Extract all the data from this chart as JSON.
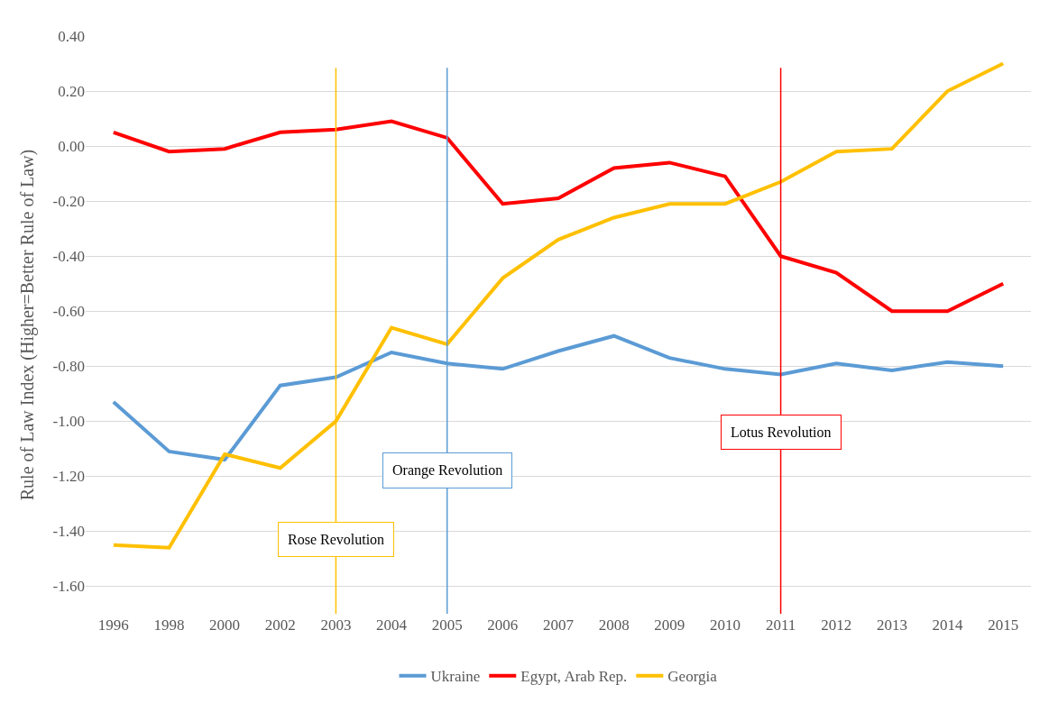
{
  "chart_data": {
    "type": "line",
    "ylabel": "Rule of Law Index (Higher=Better Rule of Law)",
    "categories": [
      "1996",
      "1998",
      "2000",
      "2002",
      "2003",
      "2004",
      "2005",
      "2006",
      "2007",
      "2008",
      "2009",
      "2010",
      "2011",
      "2012",
      "2013",
      "2014",
      "2015"
    ],
    "series": [
      {
        "name": "Ukraine",
        "color": "#5b9bd5",
        "values": [
          -0.93,
          -1.11,
          -1.14,
          -0.87,
          -0.84,
          -0.75,
          -0.79,
          -0.81,
          -0.745,
          -0.69,
          -0.77,
          -0.81,
          -0.83,
          -0.79,
          -0.815,
          -0.785,
          -0.8
        ]
      },
      {
        "name": "Egypt, Arab Rep.",
        "color": "#ff0000",
        "values": [
          0.05,
          -0.02,
          -0.01,
          0.05,
          0.06,
          0.09,
          0.03,
          -0.21,
          -0.19,
          -0.08,
          -0.06,
          -0.11,
          -0.4,
          -0.46,
          -0.6,
          -0.6,
          -0.5
        ]
      },
      {
        "name": "Georgia",
        "color": "#ffc000",
        "values": [
          -1.45,
          -1.46,
          -1.12,
          -1.17,
          -1.0,
          -0.66,
          -0.72,
          -0.48,
          -0.34,
          -0.26,
          -0.21,
          -0.21,
          -0.13,
          -0.02,
          -0.01,
          0.2,
          0.3
        ]
      }
    ],
    "ylim": [
      -1.7,
      0.4
    ],
    "yticks": [
      {
        "value": 0.4,
        "label": "0.40"
      },
      {
        "value": 0.2,
        "label": "0.20"
      },
      {
        "value": 0,
        "label": "0.00"
      },
      {
        "value": -0.2,
        "label": "-0.20"
      },
      {
        "value": -0.4,
        "label": "-0.40"
      },
      {
        "value": -0.6,
        "label": "-0.60"
      },
      {
        "value": -0.8,
        "label": "-0.80"
      },
      {
        "value": -1.0,
        "label": "-1.00"
      },
      {
        "value": -1.2,
        "label": "-1.20"
      },
      {
        "value": -1.4,
        "label": "-1.40"
      },
      {
        "value": -1.6,
        "label": "-1.60"
      }
    ],
    "ref_lines": [
      {
        "axis": "x",
        "value": "2003",
        "label": "Rose Revolution",
        "color": "#ffc000"
      },
      {
        "axis": "x",
        "value": "2005",
        "label": "Orange Revolution",
        "color": "#5b9bd5"
      },
      {
        "axis": "x",
        "value": "2011",
        "label": "Lotus Revolution",
        "color": "#ff0000"
      }
    ],
    "grid": "y",
    "legend": "bottom",
    "marker": "none",
    "line_style": "solid"
  }
}
